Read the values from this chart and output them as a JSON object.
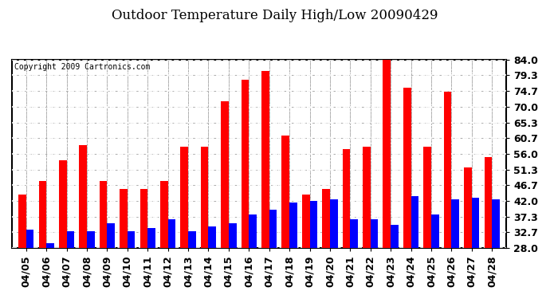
{
  "title": "Outdoor Temperature Daily High/Low 20090429",
  "copyright": "Copyright 2009 Cartronics.com",
  "dates": [
    "04/05",
    "04/06",
    "04/07",
    "04/08",
    "04/09",
    "04/10",
    "04/11",
    "04/12",
    "04/13",
    "04/14",
    "04/15",
    "04/16",
    "04/17",
    "04/18",
    "04/19",
    "04/20",
    "04/21",
    "04/22",
    "04/23",
    "04/24",
    "04/25",
    "04/26",
    "04/27",
    "04/28"
  ],
  "highs": [
    44.0,
    48.0,
    54.0,
    58.5,
    48.0,
    45.5,
    45.5,
    48.0,
    58.0,
    58.0,
    71.5,
    78.0,
    80.5,
    61.5,
    44.0,
    45.5,
    57.5,
    58.0,
    84.5,
    75.5,
    58.0,
    74.5,
    52.0,
    55.0
  ],
  "lows": [
    33.5,
    29.5,
    33.0,
    33.0,
    35.5,
    33.0,
    34.0,
    36.5,
    33.0,
    34.5,
    35.5,
    38.0,
    39.5,
    41.5,
    42.0,
    42.5,
    36.5,
    36.5,
    35.0,
    43.5,
    38.0,
    42.5,
    43.0,
    42.5
  ],
  "high_color": "#ff0000",
  "low_color": "#0000ff",
  "bg_color": "#ffffff",
  "grid_color": "#aaaaaa",
  "ymin": 28.0,
  "ymax": 84.0,
  "yticks": [
    28.0,
    32.7,
    37.3,
    42.0,
    46.7,
    51.3,
    56.0,
    60.7,
    65.3,
    70.0,
    74.7,
    79.3,
    84.0
  ],
  "title_fontsize": 12,
  "copyright_fontsize": 7,
  "tick_fontsize": 9,
  "bar_width": 0.38
}
